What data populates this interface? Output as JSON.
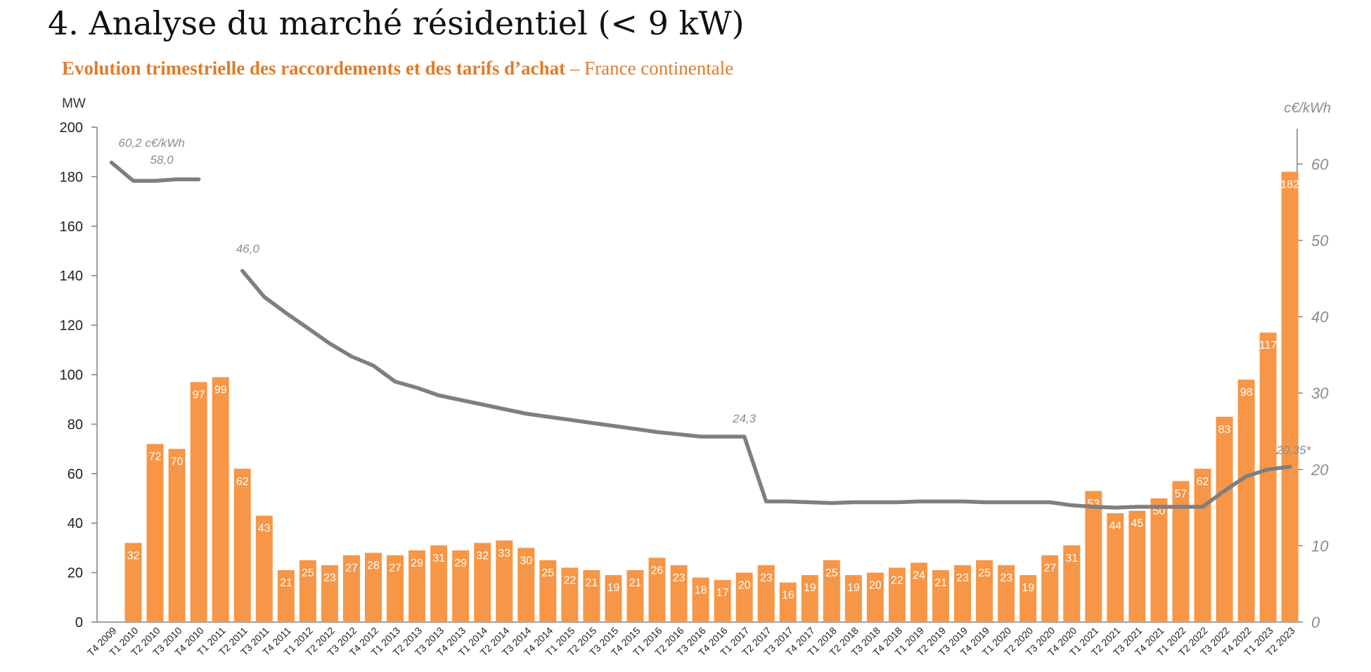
{
  "page": {
    "title": "4. Analyse du marché résidentiel (< 9 kW)",
    "subtitle_bold": "Evolution trimestrielle des raccordements et des tarifs d’achat",
    "subtitle_rest": " – France continentale"
  },
  "chart_data": {
    "type": "bar",
    "title": "",
    "ylabel": "MW",
    "y2label": "c€/kWh",
    "ylim": [
      0,
      200
    ],
    "y2lim": [
      0,
      65
    ],
    "yticks": [
      0,
      20,
      40,
      60,
      80,
      100,
      120,
      140,
      160,
      180,
      200
    ],
    "y2ticks": [
      0,
      10,
      20,
      30,
      40,
      50,
      60
    ],
    "grid": false,
    "colors": {
      "bar": "#F79646",
      "line": "#7F7F7F",
      "bar_label": "#FFFFFF",
      "annotation": "#8C8C8C",
      "axis": "#808080"
    },
    "categories": [
      "T4 2009",
      "T1 2010",
      "T2 2010",
      "T3 2010",
      "T4 2010",
      "T1 2011",
      "T2 2011",
      "T3 2011",
      "T4 2011",
      "T1 2012",
      "T2 2012",
      "T3 2012",
      "T4 2012",
      "T1 2013",
      "T2 2013",
      "T3 2013",
      "T4 2013",
      "T1 2014",
      "T2 2014",
      "T3 2014",
      "T4 2014",
      "T1 2015",
      "T2 2015",
      "T3 2015",
      "T4 2015",
      "T1 2016",
      "T2 2016",
      "T3 2016",
      "T4 2016",
      "T1 2017",
      "T2 2017",
      "T3 2017",
      "T4 2017",
      "T1 2018",
      "T2 2018",
      "T3 2018",
      "T4 2018",
      "T1 2019",
      "T2 2019",
      "T3 2019",
      "T4 2019",
      "T1 2020",
      "T2 2020",
      "T3 2020",
      "T4 2020",
      "T1 2021",
      "T2 2021",
      "T3 2021",
      "T4 2021",
      "T1 2022",
      "T2 2022",
      "T3 2022",
      "T4 2022",
      "T1 2023",
      "T2 2023"
    ],
    "series": [
      {
        "axis": "left",
        "type": "bar",
        "values": [
          null,
          32,
          72,
          70,
          97,
          99,
          62,
          43,
          21,
          25,
          23,
          27,
          28,
          27,
          29,
          31,
          29,
          32,
          33,
          30,
          25,
          22,
          21,
          19,
          21,
          26,
          23,
          18,
          17,
          20,
          23,
          16,
          19,
          25,
          19,
          20,
          22,
          24,
          21,
          23,
          25,
          23,
          19,
          27,
          31,
          53,
          44,
          45,
          50,
          57,
          62,
          83,
          98,
          117,
          182
        ],
        "labels": [
          "",
          "32",
          "72",
          "70",
          "97",
          "99",
          "62",
          "43",
          "21",
          "25",
          "23",
          "27",
          "28",
          "27",
          "29",
          "31",
          "29",
          "32",
          "33",
          "30",
          "25",
          "22",
          "21",
          "19",
          "21",
          "26",
          "23",
          "18",
          "17",
          "20",
          "23",
          "16",
          "19",
          "25",
          "19",
          "20",
          "22",
          "24",
          "21",
          "23",
          "25",
          "23",
          "19",
          "27",
          "31",
          "53",
          "44",
          "45",
          "50",
          "57",
          "62",
          "83",
          "98",
          "117",
          "182"
        ]
      },
      {
        "axis": "right",
        "type": "line",
        "segments": [
          {
            "from": 0,
            "values": [
              60.2,
              57.8,
              57.8,
              58.0,
              58.0
            ]
          },
          {
            "from": 6,
            "values": [
              46.0,
              42.6,
              40.5,
              38.5,
              36.5,
              34.8,
              33.6,
              31.5,
              30.7,
              29.7,
              29.1,
              28.5,
              27.9,
              27.3,
              26.9,
              26.5,
              26.1,
              25.7,
              25.3,
              24.9,
              24.6,
              24.3,
              24.3,
              24.3,
              15.8,
              15.8,
              15.7,
              15.6,
              15.7,
              15.7,
              15.7,
              15.8,
              15.8,
              15.8,
              15.7,
              15.7,
              15.7,
              15.7,
              15.3,
              15.1,
              15.0,
              15.1,
              15.1,
              15.1,
              15.1,
              17.2,
              19.1,
              20.0,
              20.35
            ]
          }
        ]
      }
    ],
    "annotations": [
      {
        "text": "60,2 c€/kWh",
        "index": 0,
        "value": 60.2
      },
      {
        "text": "58,0",
        "index": 2.5,
        "value": 58.0
      },
      {
        "text": "46,0",
        "index": 6.5,
        "value": 46.0
      },
      {
        "text": "24,3",
        "index": 29,
        "value": 24.3
      },
      {
        "text": "20,35*",
        "index": 54,
        "value": 20.35
      }
    ]
  }
}
